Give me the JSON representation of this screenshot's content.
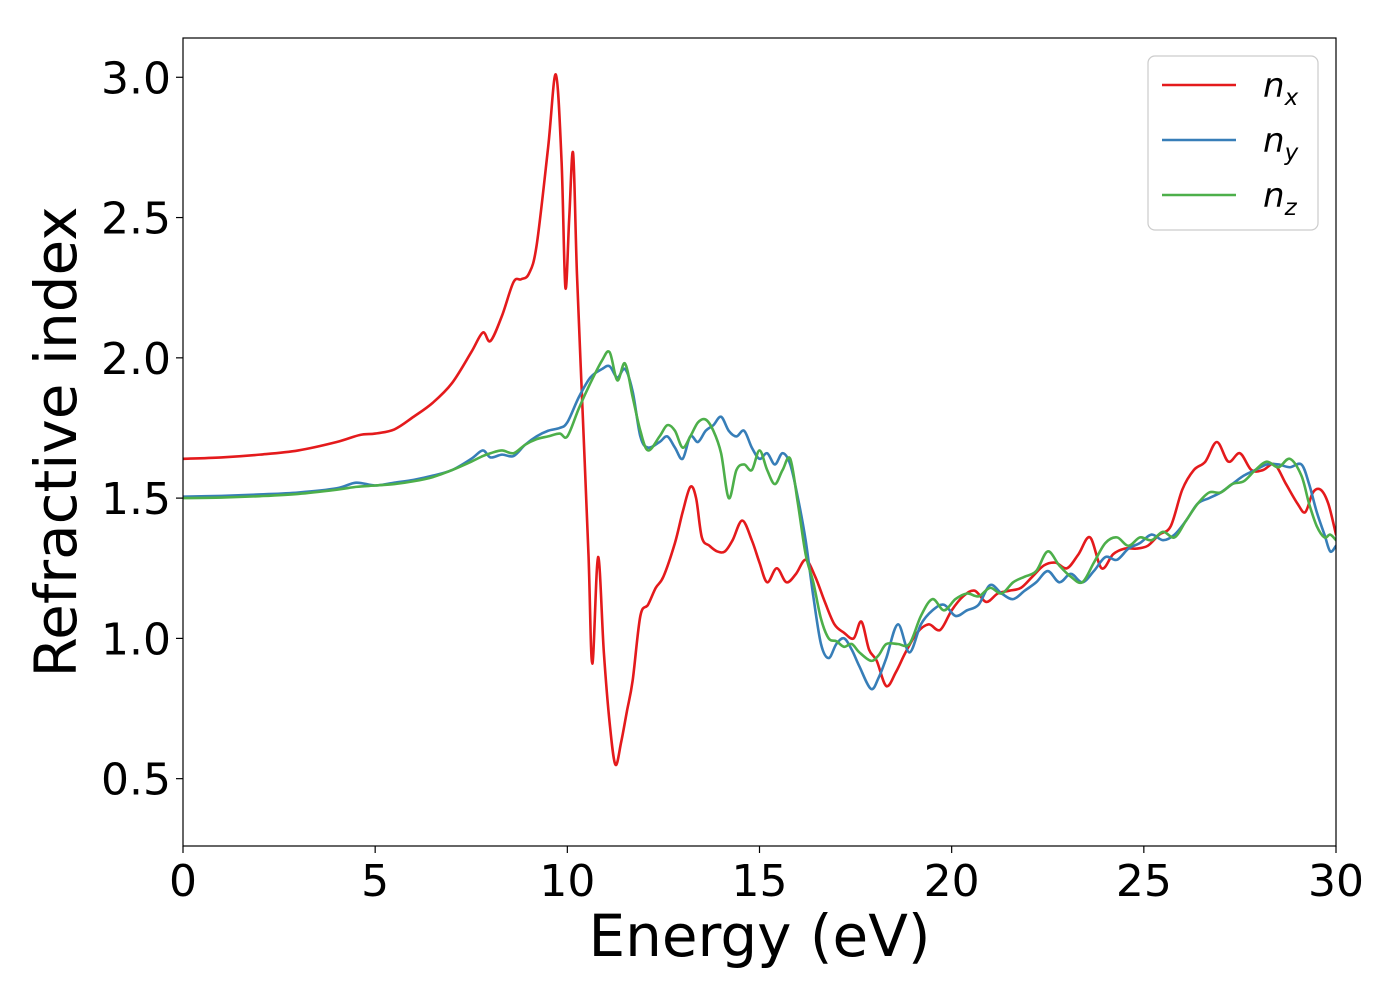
{
  "chart_data": {
    "type": "line",
    "title": "",
    "xlabel": "Energy (eV)",
    "ylabel": "Refractive index",
    "xlim": [
      0,
      30
    ],
    "ylim": [
      0.26,
      3.14
    ],
    "xticks": [
      0,
      5,
      10,
      15,
      20,
      25,
      30
    ],
    "xtick_labels": [
      "0",
      "5",
      "10",
      "15",
      "20",
      "25",
      "30"
    ],
    "yticks": [
      0.5,
      1.0,
      1.5,
      2.0,
      2.5,
      3.0
    ],
    "ytick_labels": [
      "0.5",
      "1.0",
      "1.5",
      "2.0",
      "2.5",
      "3.0"
    ],
    "grid": false,
    "legend_position": "top-right",
    "series": [
      {
        "name": "n",
        "subscript": "x",
        "color": "#e41a1c",
        "x": [
          0,
          1,
          2,
          3,
          4,
          4.6,
          5,
          5.5,
          6,
          6.5,
          7,
          7.5,
          7.8,
          8.0,
          8.3,
          8.6,
          8.8,
          9.0,
          9.2,
          9.5,
          9.7,
          9.85,
          9.95,
          10.05,
          10.15,
          10.25,
          10.4,
          10.55,
          10.65,
          10.8,
          10.95,
          11.1,
          11.25,
          11.4,
          11.55,
          11.7,
          11.9,
          12.1,
          12.3,
          12.5,
          12.8,
          13.0,
          13.2,
          13.35,
          13.5,
          13.7,
          13.9,
          14.1,
          14.3,
          14.55,
          14.8,
          15.0,
          15.2,
          15.45,
          15.7,
          15.95,
          16.2,
          16.45,
          16.7,
          16.95,
          17.2,
          17.45,
          17.65,
          17.85,
          18.05,
          18.3,
          18.55,
          18.8,
          19.1,
          19.4,
          19.7,
          20.0,
          20.3,
          20.6,
          20.9,
          21.2,
          21.5,
          21.8,
          22.1,
          22.4,
          22.7,
          23.0,
          23.3,
          23.6,
          23.9,
          24.2,
          24.5,
          24.8,
          25.1,
          25.4,
          25.7,
          26.0,
          26.3,
          26.6,
          26.9,
          27.2,
          27.5,
          27.8,
          28.1,
          28.4,
          28.7,
          29.0,
          29.2,
          29.4,
          29.6,
          29.8,
          30.0
        ],
        "y": [
          1.64,
          1.645,
          1.655,
          1.67,
          1.7,
          1.725,
          1.73,
          1.745,
          1.79,
          1.84,
          1.91,
          2.02,
          2.09,
          2.06,
          2.15,
          2.27,
          2.28,
          2.3,
          2.4,
          2.75,
          3.01,
          2.7,
          2.25,
          2.5,
          2.73,
          2.3,
          1.8,
          1.3,
          0.91,
          1.29,
          0.95,
          0.7,
          0.55,
          0.63,
          0.74,
          0.85,
          1.08,
          1.12,
          1.18,
          1.22,
          1.34,
          1.45,
          1.54,
          1.5,
          1.36,
          1.33,
          1.31,
          1.31,
          1.35,
          1.42,
          1.35,
          1.27,
          1.2,
          1.25,
          1.2,
          1.23,
          1.28,
          1.22,
          1.13,
          1.05,
          1.02,
          1.0,
          1.06,
          0.96,
          0.92,
          0.83,
          0.88,
          0.95,
          1.02,
          1.05,
          1.03,
          1.1,
          1.15,
          1.17,
          1.13,
          1.16,
          1.17,
          1.18,
          1.22,
          1.26,
          1.27,
          1.25,
          1.3,
          1.36,
          1.25,
          1.3,
          1.32,
          1.32,
          1.33,
          1.37,
          1.4,
          1.53,
          1.6,
          1.63,
          1.7,
          1.63,
          1.66,
          1.6,
          1.6,
          1.62,
          1.55,
          1.48,
          1.45,
          1.52,
          1.53,
          1.48,
          1.37
        ]
      },
      {
        "name": "n",
        "subscript": "y",
        "color": "#377eb8",
        "x": [
          0,
          1,
          2,
          3,
          4,
          4.5,
          5,
          5.5,
          6,
          6.5,
          7,
          7.5,
          7.8,
          8.0,
          8.3,
          8.6,
          8.9,
          9.2,
          9.5,
          9.8,
          10.0,
          10.3,
          10.6,
          10.9,
          11.1,
          11.3,
          11.5,
          11.7,
          11.9,
          12.1,
          12.4,
          12.6,
          12.8,
          13.0,
          13.2,
          13.4,
          13.6,
          13.8,
          14.0,
          14.2,
          14.4,
          14.6,
          14.8,
          15.0,
          15.2,
          15.4,
          15.6,
          15.8,
          16.0,
          16.2,
          16.4,
          16.6,
          16.8,
          17.0,
          17.2,
          17.4,
          17.6,
          17.9,
          18.1,
          18.3,
          18.6,
          18.9,
          19.2,
          19.5,
          19.8,
          20.1,
          20.4,
          20.7,
          21.0,
          21.3,
          21.6,
          21.9,
          22.2,
          22.5,
          22.8,
          23.1,
          23.4,
          23.7,
          24.0,
          24.3,
          24.6,
          24.9,
          25.2,
          25.5,
          25.8,
          26.1,
          26.4,
          26.7,
          27.0,
          27.3,
          27.6,
          27.9,
          28.2,
          28.5,
          28.8,
          29.1,
          29.3,
          29.5,
          29.7,
          29.85,
          30.0
        ],
        "y": [
          1.505,
          1.508,
          1.513,
          1.52,
          1.535,
          1.555,
          1.545,
          1.555,
          1.565,
          1.58,
          1.6,
          1.64,
          1.67,
          1.645,
          1.655,
          1.65,
          1.69,
          1.72,
          1.74,
          1.75,
          1.77,
          1.86,
          1.93,
          1.96,
          1.97,
          1.93,
          1.96,
          1.88,
          1.72,
          1.68,
          1.7,
          1.72,
          1.68,
          1.64,
          1.72,
          1.7,
          1.74,
          1.76,
          1.79,
          1.74,
          1.72,
          1.74,
          1.68,
          1.64,
          1.66,
          1.62,
          1.66,
          1.62,
          1.5,
          1.35,
          1.15,
          0.98,
          0.93,
          0.98,
          1.0,
          0.96,
          0.9,
          0.82,
          0.86,
          0.93,
          1.05,
          0.95,
          1.05,
          1.1,
          1.12,
          1.08,
          1.1,
          1.12,
          1.19,
          1.16,
          1.14,
          1.17,
          1.2,
          1.24,
          1.2,
          1.23,
          1.2,
          1.24,
          1.29,
          1.28,
          1.32,
          1.34,
          1.37,
          1.35,
          1.37,
          1.42,
          1.48,
          1.5,
          1.52,
          1.55,
          1.58,
          1.6,
          1.62,
          1.62,
          1.61,
          1.62,
          1.55,
          1.45,
          1.37,
          1.31,
          1.33
        ]
      },
      {
        "name": "n",
        "subscript": "z",
        "color": "#4daf4a",
        "x": [
          0,
          1,
          2,
          3,
          4,
          4.5,
          5,
          5.5,
          6,
          6.5,
          7,
          7.5,
          7.8,
          8.0,
          8.3,
          8.6,
          8.9,
          9.2,
          9.5,
          9.8,
          10.0,
          10.3,
          10.6,
          10.9,
          11.1,
          11.3,
          11.5,
          11.7,
          11.9,
          12.1,
          12.4,
          12.6,
          12.8,
          13.0,
          13.2,
          13.4,
          13.6,
          13.8,
          14.0,
          14.2,
          14.4,
          14.6,
          14.8,
          15.0,
          15.2,
          15.4,
          15.6,
          15.8,
          16.0,
          16.2,
          16.4,
          16.6,
          16.8,
          17.0,
          17.2,
          17.4,
          17.6,
          17.9,
          18.1,
          18.3,
          18.6,
          18.9,
          19.2,
          19.5,
          19.8,
          20.1,
          20.4,
          20.7,
          21.0,
          21.3,
          21.6,
          21.9,
          22.2,
          22.5,
          22.8,
          23.1,
          23.4,
          23.7,
          24.0,
          24.3,
          24.6,
          24.9,
          25.2,
          25.5,
          25.8,
          26.1,
          26.4,
          26.7,
          27.0,
          27.3,
          27.6,
          27.9,
          28.2,
          28.5,
          28.8,
          29.1,
          29.3,
          29.5,
          29.7,
          29.85,
          30.0
        ],
        "y": [
          1.5,
          1.502,
          1.507,
          1.515,
          1.53,
          1.54,
          1.545,
          1.55,
          1.56,
          1.575,
          1.6,
          1.63,
          1.65,
          1.66,
          1.67,
          1.66,
          1.69,
          1.71,
          1.72,
          1.73,
          1.72,
          1.82,
          1.91,
          1.99,
          2.02,
          1.92,
          1.98,
          1.86,
          1.74,
          1.67,
          1.72,
          1.76,
          1.74,
          1.68,
          1.72,
          1.77,
          1.78,
          1.74,
          1.66,
          1.5,
          1.6,
          1.62,
          1.6,
          1.67,
          1.6,
          1.55,
          1.6,
          1.64,
          1.48,
          1.3,
          1.2,
          1.07,
          1.0,
          0.99,
          0.97,
          0.98,
          0.95,
          0.92,
          0.94,
          0.98,
          0.98,
          0.98,
          1.08,
          1.14,
          1.1,
          1.14,
          1.16,
          1.15,
          1.18,
          1.16,
          1.2,
          1.22,
          1.24,
          1.31,
          1.26,
          1.22,
          1.2,
          1.27,
          1.34,
          1.36,
          1.33,
          1.36,
          1.35,
          1.38,
          1.36,
          1.42,
          1.48,
          1.52,
          1.52,
          1.55,
          1.56,
          1.6,
          1.63,
          1.61,
          1.64,
          1.58,
          1.48,
          1.4,
          1.36,
          1.37,
          1.35
        ]
      }
    ]
  }
}
